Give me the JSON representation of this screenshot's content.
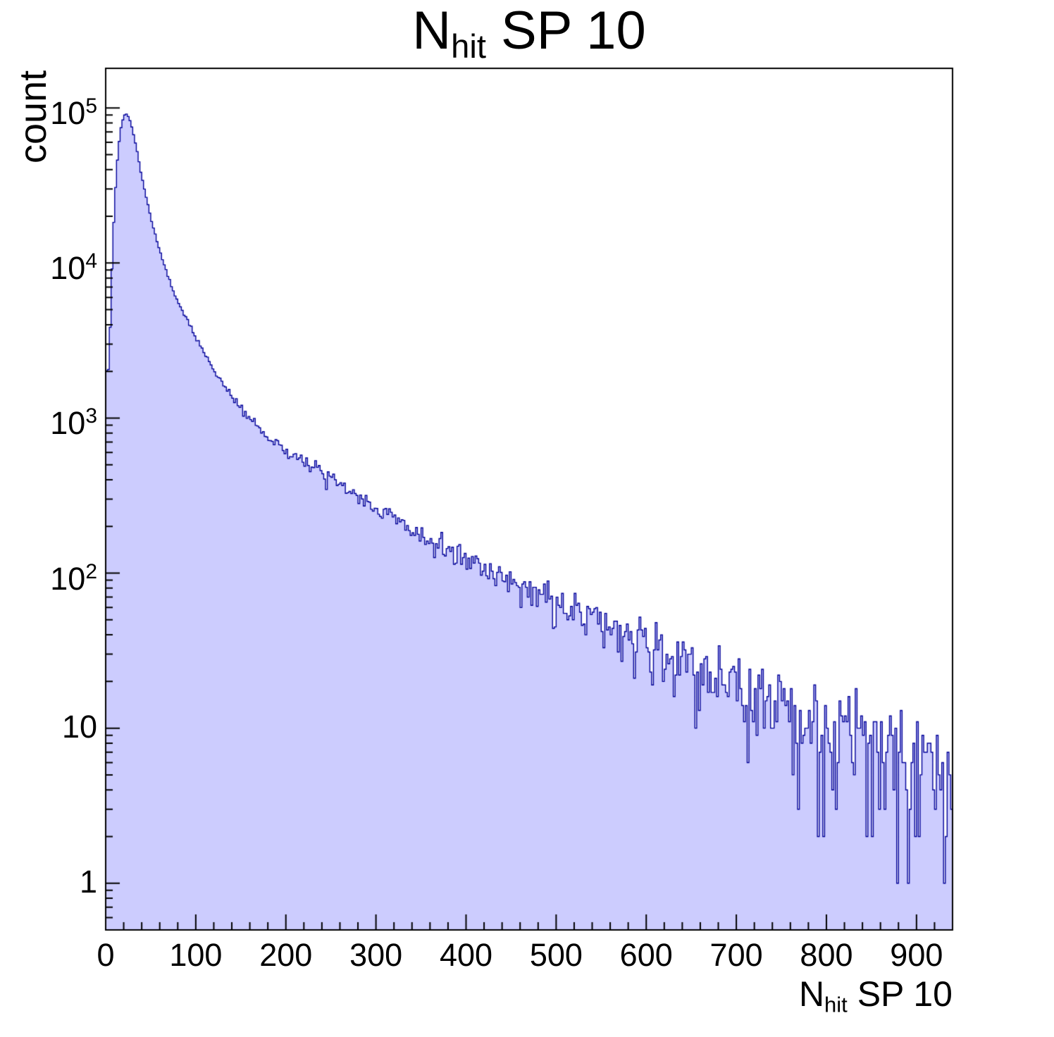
{
  "chart_data": {
    "type": "histogram",
    "title": {
      "prefix": "N",
      "sub": "hit",
      "suffix": " SP 10"
    },
    "xlabel": {
      "prefix": "N",
      "sub": "hit",
      "suffix": " SP 10"
    },
    "ylabel": "count",
    "xlim": [
      0,
      940
    ],
    "ylim": [
      0.5,
      180000
    ],
    "log_y": true,
    "x_ticks": [
      0,
      100,
      200,
      300,
      400,
      500,
      600,
      700,
      800,
      900
    ],
    "x_minor_step": 20,
    "y_ticks": [
      {
        "value": 1,
        "label": "1"
      },
      {
        "value": 10,
        "label": "10"
      },
      {
        "value": 100,
        "label": "10",
        "exp": "2"
      },
      {
        "value": 1000,
        "label": "10",
        "exp": "3"
      },
      {
        "value": 10000,
        "label": "10",
        "exp": "4"
      },
      {
        "value": 100000,
        "label": "10",
        "exp": "5"
      }
    ],
    "bin_width": 2,
    "fill_color": "#ccccfe",
    "line_color": "#000099",
    "axis_color": "#000000",
    "noise_seed": 20107,
    "noise_scale": 1.15,
    "trend": [
      [
        0,
        2600
      ],
      [
        2,
        1500
      ],
      [
        5,
        3800
      ],
      [
        8,
        14000
      ],
      [
        12,
        40000
      ],
      [
        16,
        70000
      ],
      [
        20,
        90000
      ],
      [
        24,
        91000
      ],
      [
        28,
        80000
      ],
      [
        34,
        56000
      ],
      [
        40,
        36000
      ],
      [
        48,
        22000
      ],
      [
        56,
        14500
      ],
      [
        64,
        10000
      ],
      [
        72,
        7400
      ],
      [
        80,
        5700
      ],
      [
        90,
        4300
      ],
      [
        100,
        3300
      ],
      [
        110,
        2600
      ],
      [
        120,
        2050
      ],
      [
        130,
        1680
      ],
      [
        140,
        1390
      ],
      [
        150,
        1160
      ],
      [
        160,
        990
      ],
      [
        170,
        870
      ],
      [
        180,
        770
      ],
      [
        190,
        690
      ],
      [
        200,
        620
      ],
      [
        215,
        545
      ],
      [
        230,
        475
      ],
      [
        245,
        418
      ],
      [
        260,
        368
      ],
      [
        275,
        322
      ],
      [
        290,
        282
      ],
      [
        305,
        252
      ],
      [
        320,
        222
      ],
      [
        335,
        198
      ],
      [
        350,
        178
      ],
      [
        365,
        158
      ],
      [
        380,
        140
      ],
      [
        395,
        128
      ],
      [
        410,
        115
      ],
      [
        425,
        104
      ],
      [
        440,
        94
      ],
      [
        455,
        85
      ],
      [
        470,
        77
      ],
      [
        485,
        70
      ],
      [
        500,
        63
      ],
      [
        515,
        57
      ],
      [
        530,
        51
      ],
      [
        545,
        46
      ],
      [
        560,
        42
      ],
      [
        575,
        38
      ],
      [
        590,
        35
      ],
      [
        605,
        32
      ],
      [
        620,
        29
      ],
      [
        635,
        26
      ],
      [
        650,
        24
      ],
      [
        665,
        22
      ],
      [
        680,
        20
      ],
      [
        695,
        18.5
      ],
      [
        710,
        17
      ],
      [
        725,
        15.5
      ],
      [
        740,
        14.5
      ],
      [
        755,
        13.5
      ],
      [
        770,
        12.5
      ],
      [
        785,
        11.6
      ],
      [
        800,
        10.8
      ],
      [
        815,
        10
      ],
      [
        830,
        9.3
      ],
      [
        845,
        8.6
      ],
      [
        860,
        8
      ],
      [
        875,
        7.4
      ],
      [
        890,
        6.8
      ],
      [
        905,
        6.2
      ],
      [
        920,
        5.2
      ],
      [
        930,
        4.2
      ],
      [
        940,
        3.2
      ]
    ]
  }
}
